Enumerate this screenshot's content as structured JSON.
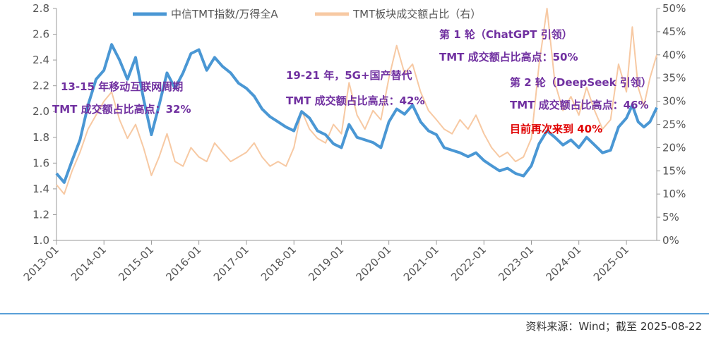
{
  "colors": {
    "index_line": "#4a97d4",
    "share_line": "#f7c9a3",
    "annotation_purple": "#7030a0",
    "annotation_red": "#e00000",
    "axis": "#999999"
  },
  "source": "资料来源：Wind；截至 2025-08-22",
  "annotations": [
    {
      "text": "13-15 年移动互联网周期",
      "color": "purple"
    },
    {
      "text": "TMT 成交额占比高点：32%",
      "color": "purple"
    },
    {
      "text": "19-21 年，5G+国产替代",
      "color": "purple"
    },
    {
      "text": "TMT 成交额占比高点：42%",
      "color": "purple"
    },
    {
      "text": "第 1 轮（ChatGPT 引领）",
      "color": "purple"
    },
    {
      "text": "TMT 成交额占比高点：50%",
      "color": "purple"
    },
    {
      "text": "第 2 轮（DeepSeek 引领）",
      "color": "purple"
    },
    {
      "text": "TMT 成交额占比高点：46%",
      "color": "purple"
    },
    {
      "text": "目前再次来到 40%",
      "color": "red"
    }
  ],
  "chart_data": {
    "type": "line",
    "title": "",
    "x_tick_labels": [
      "2013-01",
      "2014-01",
      "2015-01",
      "2016-01",
      "2017-01",
      "2018-01",
      "2019-01",
      "2020-01",
      "2021-01",
      "2022-01",
      "2023-01",
      "2024-01",
      "2025-01"
    ],
    "x_range": [
      "2013-01-01",
      "2025-08-22"
    ],
    "y_left": {
      "min": 1.0,
      "max": 2.8,
      "ticks": [
        "1.0",
        "1.2",
        "1.4",
        "1.6",
        "1.8",
        "2.0",
        "2.2",
        "2.4",
        "2.6",
        "2.8"
      ]
    },
    "y_right": {
      "min": 0,
      "max": 50,
      "ticks": [
        "0%",
        "5%",
        "10%",
        "15%",
        "20%",
        "25%",
        "30%",
        "35%",
        "40%",
        "45%",
        "50%"
      ]
    },
    "legend_position": "top",
    "grid": false,
    "series": [
      {
        "name": "中信TMT指数/万得全A",
        "axis": "left",
        "points": [
          [
            "2013-01-01",
            1.52
          ],
          [
            "2013-03-01",
            1.45
          ],
          [
            "2013-05-01",
            1.62
          ],
          [
            "2013-07-01",
            1.78
          ],
          [
            "2013-09-01",
            2.05
          ],
          [
            "2013-11-01",
            2.25
          ],
          [
            "2014-01-01",
            2.32
          ],
          [
            "2014-03-01",
            2.52
          ],
          [
            "2014-05-01",
            2.4
          ],
          [
            "2014-07-01",
            2.25
          ],
          [
            "2014-09-01",
            2.42
          ],
          [
            "2014-11-01",
            2.1
          ],
          [
            "2015-01-01",
            1.82
          ],
          [
            "2015-03-01",
            2.05
          ],
          [
            "2015-05-01",
            2.3
          ],
          [
            "2015-07-01",
            2.18
          ],
          [
            "2015-09-01",
            2.3
          ],
          [
            "2015-11-01",
            2.45
          ],
          [
            "2016-01-01",
            2.48
          ],
          [
            "2016-03-01",
            2.32
          ],
          [
            "2016-05-01",
            2.42
          ],
          [
            "2016-07-01",
            2.35
          ],
          [
            "2016-09-01",
            2.3
          ],
          [
            "2016-11-01",
            2.22
          ],
          [
            "2017-01-01",
            2.18
          ],
          [
            "2017-03-01",
            2.12
          ],
          [
            "2017-05-01",
            2.02
          ],
          [
            "2017-07-01",
            1.96
          ],
          [
            "2017-09-01",
            1.92
          ],
          [
            "2017-11-01",
            1.88
          ],
          [
            "2018-01-01",
            1.85
          ],
          [
            "2018-03-01",
            2.0
          ],
          [
            "2018-05-01",
            1.95
          ],
          [
            "2018-07-01",
            1.85
          ],
          [
            "2018-09-01",
            1.82
          ],
          [
            "2018-11-01",
            1.75
          ],
          [
            "2019-01-01",
            1.72
          ],
          [
            "2019-03-01",
            1.9
          ],
          [
            "2019-05-01",
            1.8
          ],
          [
            "2019-07-01",
            1.78
          ],
          [
            "2019-09-01",
            1.76
          ],
          [
            "2019-11-01",
            1.72
          ],
          [
            "2020-01-01",
            1.92
          ],
          [
            "2020-03-01",
            2.02
          ],
          [
            "2020-05-01",
            1.98
          ],
          [
            "2020-07-01",
            2.05
          ],
          [
            "2020-09-01",
            1.92
          ],
          [
            "2020-11-01",
            1.85
          ],
          [
            "2021-01-01",
            1.82
          ],
          [
            "2021-03-01",
            1.72
          ],
          [
            "2021-05-01",
            1.7
          ],
          [
            "2021-07-01",
            1.68
          ],
          [
            "2021-09-01",
            1.65
          ],
          [
            "2021-11-01",
            1.68
          ],
          [
            "2022-01-01",
            1.62
          ],
          [
            "2022-03-01",
            1.58
          ],
          [
            "2022-05-01",
            1.54
          ],
          [
            "2022-07-01",
            1.56
          ],
          [
            "2022-09-01",
            1.52
          ],
          [
            "2022-11-01",
            1.5
          ],
          [
            "2023-01-01",
            1.58
          ],
          [
            "2023-03-01",
            1.75
          ],
          [
            "2023-05-01",
            1.85
          ],
          [
            "2023-07-01",
            1.8
          ],
          [
            "2023-09-01",
            1.74
          ],
          [
            "2023-11-01",
            1.78
          ],
          [
            "2024-01-01",
            1.72
          ],
          [
            "2024-03-01",
            1.8
          ],
          [
            "2024-05-01",
            1.74
          ],
          [
            "2024-07-01",
            1.68
          ],
          [
            "2024-09-01",
            1.7
          ],
          [
            "2024-11-01",
            1.88
          ],
          [
            "2025-01-01",
            1.95
          ],
          [
            "2025-02-15",
            2.05
          ],
          [
            "2025-04-01",
            1.92
          ],
          [
            "2025-05-15",
            1.88
          ],
          [
            "2025-07-01",
            1.92
          ],
          [
            "2025-08-22",
            2.03
          ]
        ]
      },
      {
        "name": "TMT板块成交额占比（右）",
        "axis": "right",
        "points": [
          [
            "2013-01-01",
            12
          ],
          [
            "2013-03-01",
            10
          ],
          [
            "2013-05-01",
            15
          ],
          [
            "2013-07-01",
            19
          ],
          [
            "2013-09-01",
            24
          ],
          [
            "2013-11-01",
            27
          ],
          [
            "2014-01-01",
            30
          ],
          [
            "2014-03-01",
            32
          ],
          [
            "2014-05-01",
            26
          ],
          [
            "2014-07-01",
            22
          ],
          [
            "2014-09-01",
            25
          ],
          [
            "2014-11-01",
            20
          ],
          [
            "2015-01-01",
            14
          ],
          [
            "2015-03-01",
            18
          ],
          [
            "2015-05-01",
            23
          ],
          [
            "2015-07-01",
            17
          ],
          [
            "2015-09-01",
            16
          ],
          [
            "2015-11-01",
            20
          ],
          [
            "2016-01-01",
            18
          ],
          [
            "2016-03-01",
            17
          ],
          [
            "2016-05-01",
            21
          ],
          [
            "2016-07-01",
            19
          ],
          [
            "2016-09-01",
            17
          ],
          [
            "2016-11-01",
            18
          ],
          [
            "2017-01-01",
            19
          ],
          [
            "2017-03-01",
            21
          ],
          [
            "2017-05-01",
            18
          ],
          [
            "2017-07-01",
            16
          ],
          [
            "2017-09-01",
            17
          ],
          [
            "2017-11-01",
            16
          ],
          [
            "2018-01-01",
            20
          ],
          [
            "2018-03-01",
            28
          ],
          [
            "2018-05-01",
            24
          ],
          [
            "2018-07-01",
            22
          ],
          [
            "2018-09-01",
            21
          ],
          [
            "2018-11-01",
            25
          ],
          [
            "2019-01-01",
            23
          ],
          [
            "2019-03-01",
            34
          ],
          [
            "2019-05-01",
            27
          ],
          [
            "2019-07-01",
            24
          ],
          [
            "2019-09-01",
            28
          ],
          [
            "2019-11-01",
            26
          ],
          [
            "2020-01-01",
            35
          ],
          [
            "2020-03-01",
            42
          ],
          [
            "2020-05-01",
            36
          ],
          [
            "2020-07-01",
            38
          ],
          [
            "2020-09-01",
            32
          ],
          [
            "2020-11-01",
            28
          ],
          [
            "2021-01-01",
            26
          ],
          [
            "2021-03-01",
            24
          ],
          [
            "2021-05-01",
            23
          ],
          [
            "2021-07-01",
            26
          ],
          [
            "2021-09-01",
            24
          ],
          [
            "2021-11-01",
            27
          ],
          [
            "2022-01-01",
            23
          ],
          [
            "2022-03-01",
            20
          ],
          [
            "2022-05-01",
            18
          ],
          [
            "2022-07-01",
            19
          ],
          [
            "2022-09-01",
            17
          ],
          [
            "2022-11-01",
            18
          ],
          [
            "2023-01-01",
            22
          ],
          [
            "2023-03-01",
            38
          ],
          [
            "2023-05-01",
            50
          ],
          [
            "2023-07-01",
            34
          ],
          [
            "2023-09-01",
            28
          ],
          [
            "2023-11-01",
            31
          ],
          [
            "2024-01-01",
            27
          ],
          [
            "2024-03-01",
            33
          ],
          [
            "2024-05-01",
            28
          ],
          [
            "2024-07-01",
            24
          ],
          [
            "2024-09-01",
            26
          ],
          [
            "2024-11-01",
            38
          ],
          [
            "2025-01-01",
            32
          ],
          [
            "2025-02-15",
            46
          ],
          [
            "2025-04-01",
            33
          ],
          [
            "2025-05-15",
            29
          ],
          [
            "2025-07-01",
            35
          ],
          [
            "2025-08-22",
            40
          ]
        ]
      }
    ]
  }
}
